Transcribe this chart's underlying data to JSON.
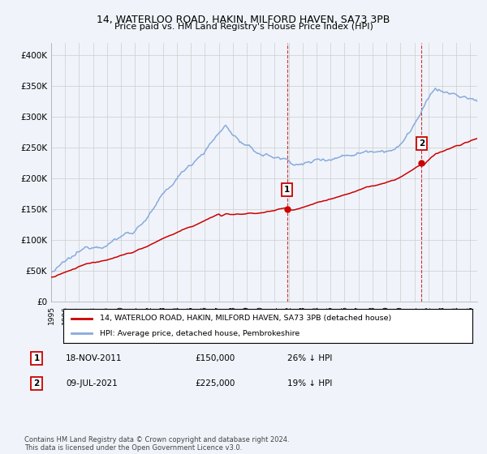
{
  "title": "14, WATERLOO ROAD, HAKIN, MILFORD HAVEN, SA73 3PB",
  "subtitle": "Price paid vs. HM Land Registry's House Price Index (HPI)",
  "hpi_label": "HPI: Average price, detached house, Pembrokeshire",
  "property_label": "14, WATERLOO ROAD, HAKIN, MILFORD HAVEN, SA73 3PB (detached house)",
  "annotation1": {
    "num": "1",
    "date": "18-NOV-2011",
    "price": "£150,000",
    "pct": "26% ↓ HPI",
    "x_year": 2011.88
  },
  "annotation2": {
    "num": "2",
    "date": "09-JUL-2021",
    "price": "£225,000",
    "pct": "19% ↓ HPI",
    "x_year": 2021.52
  },
  "property_color": "#cc0000",
  "hpi_color": "#88aadd",
  "background_color": "#f0f4fa",
  "plot_bg_color": "#f0f4fa",
  "grid_color": "#cccccc",
  "ylim": [
    0,
    420000
  ],
  "xlim": [
    1995,
    2025.5
  ],
  "footer": "Contains HM Land Registry data © Crown copyright and database right 2024.\nThis data is licensed under the Open Government Licence v3.0.",
  "yticks": [
    0,
    50000,
    100000,
    150000,
    200000,
    250000,
    300000,
    350000,
    400000
  ],
  "ytick_labels": [
    "£0",
    "£50K",
    "£100K",
    "£150K",
    "£200K",
    "£250K",
    "£300K",
    "£350K",
    "£400K"
  ]
}
